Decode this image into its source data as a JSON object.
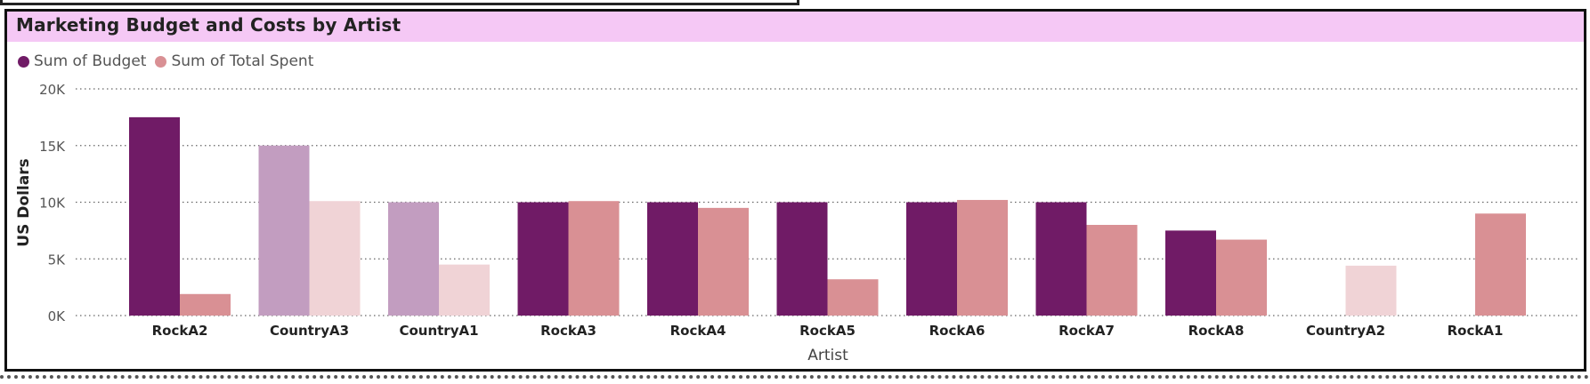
{
  "title": "Marketing Budget and Costs by Artist",
  "legend": {
    "budget": "Sum of Budget",
    "spent": "Sum of Total Spent"
  },
  "colors": {
    "budget": "#701b66",
    "spent": "#d99094",
    "budget_faded": "#c29dc0",
    "spent_faded": "#f0d3d6",
    "title_bg": "#f5c8f5"
  },
  "chart_data": {
    "type": "bar",
    "title": "Marketing Budget and Costs by Artist",
    "xlabel": "Artist",
    "ylabel": "US Dollars",
    "ylim": [
      0,
      20000
    ],
    "yticks": [
      {
        "value": 0,
        "label": "0K"
      },
      {
        "value": 5000,
        "label": "5K"
      },
      {
        "value": 10000,
        "label": "10K"
      },
      {
        "value": 15000,
        "label": "15K"
      },
      {
        "value": 20000,
        "label": "20K"
      }
    ],
    "grid": true,
    "legend_position": "top-left",
    "categories": [
      "RockA2",
      "CountryA3",
      "CountryA1",
      "RockA3",
      "RockA4",
      "RockA5",
      "RockA6",
      "RockA7",
      "RockA8",
      "CountryA2",
      "RockA1"
    ],
    "faded_categories": [
      "CountryA3",
      "CountryA1",
      "CountryA2"
    ],
    "series": [
      {
        "name": "Sum of Budget",
        "values": [
          17500,
          15000,
          10000,
          10000,
          10000,
          10000,
          10000,
          10000,
          7500,
          0,
          0
        ]
      },
      {
        "name": "Sum of Total Spent",
        "values": [
          1900,
          10100,
          4500,
          10100,
          9500,
          3200,
          10200,
          8000,
          6700,
          4400,
          9000
        ]
      }
    ]
  }
}
